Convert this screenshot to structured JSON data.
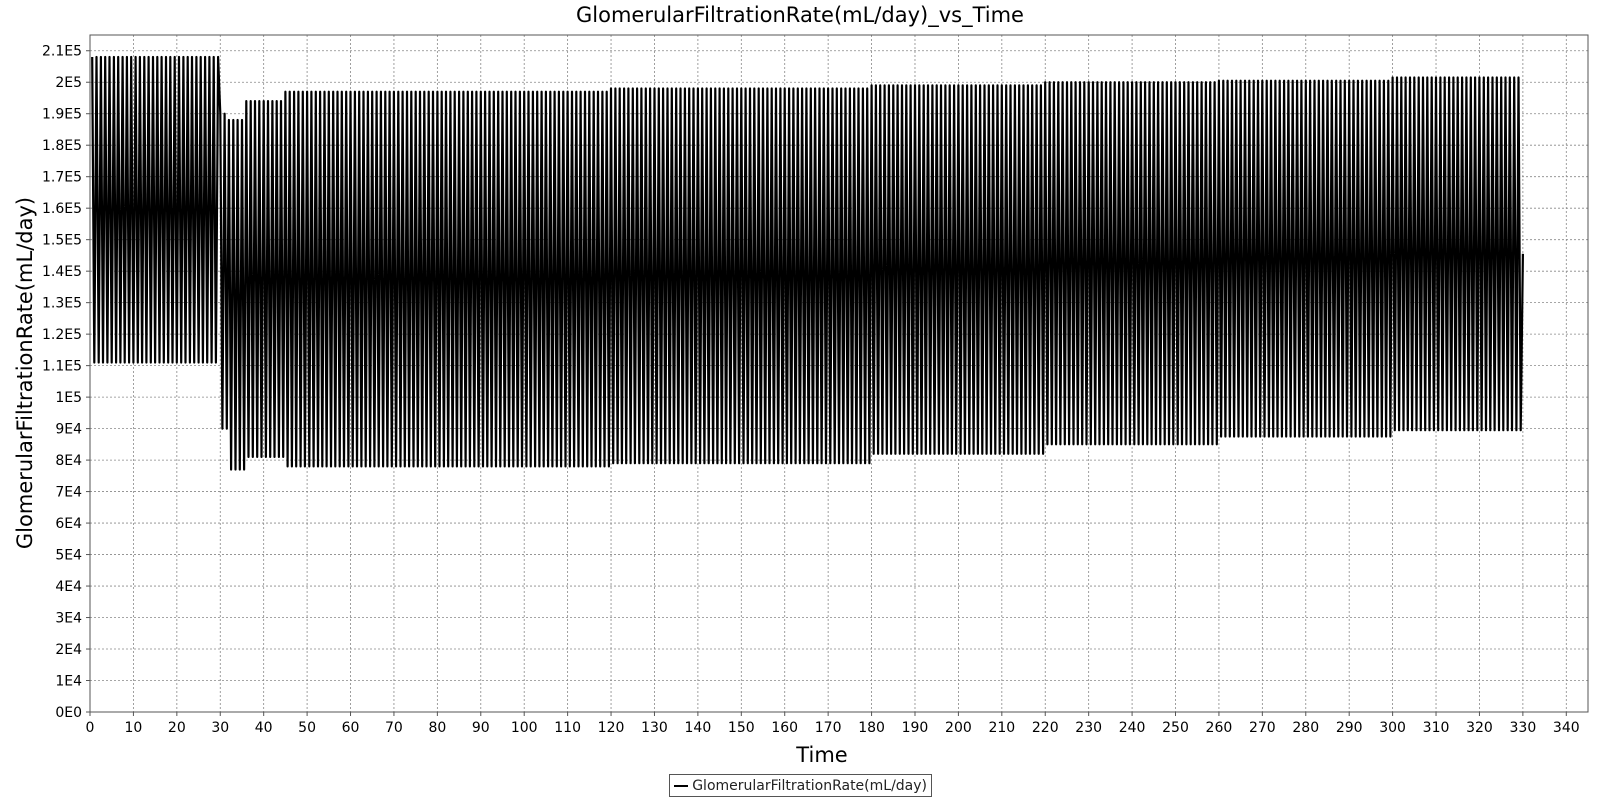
{
  "chart_data": {
    "type": "line",
    "title": "GlomerularFiltrationRate(mL/day)_vs_Time",
    "xlabel": "Time",
    "ylabel": "GlomerularFiltrationRate(mL/day)",
    "xlim": [
      0,
      345
    ],
    "ylim": [
      0,
      215000
    ],
    "x_ticks": [
      0,
      10,
      20,
      30,
      40,
      50,
      60,
      70,
      80,
      90,
      100,
      110,
      120,
      130,
      140,
      150,
      160,
      170,
      180,
      190,
      200,
      210,
      220,
      230,
      240,
      250,
      260,
      270,
      280,
      290,
      300,
      310,
      320,
      330,
      340
    ],
    "y_ticks": [
      {
        "value": 0,
        "label": "0E0"
      },
      {
        "value": 10000,
        "label": "1E4"
      },
      {
        "value": 20000,
        "label": "2E4"
      },
      {
        "value": 30000,
        "label": "3E4"
      },
      {
        "value": 40000,
        "label": "4E4"
      },
      {
        "value": 50000,
        "label": "5E4"
      },
      {
        "value": 60000,
        "label": "6E4"
      },
      {
        "value": 70000,
        "label": "7E4"
      },
      {
        "value": 80000,
        "label": "8E4"
      },
      {
        "value": 90000,
        "label": "9E4"
      },
      {
        "value": 100000,
        "label": "1E5"
      },
      {
        "value": 110000,
        "label": "1.1E5"
      },
      {
        "value": 120000,
        "label": "1.2E5"
      },
      {
        "value": 130000,
        "label": "1.3E5"
      },
      {
        "value": 140000,
        "label": "1.4E5"
      },
      {
        "value": 150000,
        "label": "1.5E5"
      },
      {
        "value": 160000,
        "label": "1.6E5"
      },
      {
        "value": 170000,
        "label": "1.7E5"
      },
      {
        "value": 180000,
        "label": "1.8E5"
      },
      {
        "value": 190000,
        "label": "1.9E5"
      },
      {
        "value": 200000,
        "label": "2E5"
      },
      {
        "value": 210000,
        "label": "2.1E5"
      }
    ],
    "grid": true,
    "legend_position": "bottom-center",
    "series": [
      {
        "name": "GlomerularFiltrationRate(mL/day)",
        "color": "#000000",
        "segments": [
          {
            "x_start": 0.5,
            "x_end": 30,
            "period": 1.0,
            "min": 111000,
            "max": 208000
          },
          {
            "x_start": 30,
            "x_end": 32,
            "period": 1.0,
            "min": 90000,
            "max": 190000
          },
          {
            "x_start": 32,
            "x_end": 36,
            "period": 1.0,
            "min": 77000,
            "max": 188000
          },
          {
            "x_start": 36,
            "x_end": 45,
            "period": 1.0,
            "min": 81000,
            "max": 194000
          },
          {
            "x_start": 45,
            "x_end": 120,
            "period": 1.0,
            "min": 78000,
            "max": 197000
          },
          {
            "x_start": 120,
            "x_end": 180,
            "period": 1.0,
            "min": 79000,
            "max": 198000
          },
          {
            "x_start": 180,
            "x_end": 220,
            "period": 1.0,
            "min": 82000,
            "max": 199000
          },
          {
            "x_start": 220,
            "x_end": 260,
            "period": 1.0,
            "min": 85000,
            "max": 200000
          },
          {
            "x_start": 260,
            "x_end": 300,
            "period": 1.0,
            "min": 87500,
            "max": 200500
          },
          {
            "x_start": 300,
            "x_end": 330,
            "period": 1.0,
            "min": 89500,
            "max": 201500
          }
        ]
      }
    ]
  }
}
